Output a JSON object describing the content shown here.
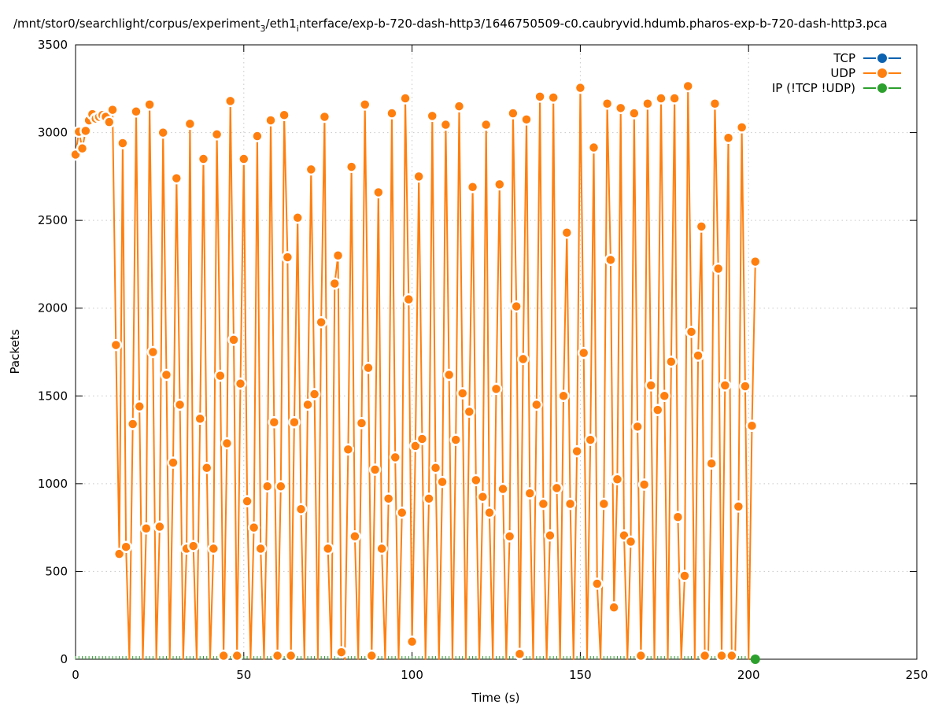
{
  "chart_data": {
    "type": "line",
    "title_parts": [
      {
        "text": "/mnt/stor0/searchlight/corpus/experiment",
        "sub": false
      },
      {
        "text": "3",
        "sub": true
      },
      {
        "text": "/eth1",
        "sub": false
      },
      {
        "text": "i",
        "sub": true
      },
      {
        "text": "nterface/exp-b-720-dash-http3/1646750509-c0.caubryvid.hdumb.pharos-exp-b-720-dash-http3.pca",
        "sub": false
      }
    ],
    "xlabel": "Time (s)",
    "ylabel": "Packets",
    "xlim": [
      0,
      250
    ],
    "ylim": [
      0,
      3500
    ],
    "xticks": [
      "0",
      "50",
      "100",
      "150",
      "200",
      "250"
    ],
    "yticks": [
      "0",
      "500",
      "1000",
      "1500",
      "2000",
      "2500",
      "3000",
      "3500"
    ],
    "grid": true,
    "legend_position": "top-right",
    "series": [
      {
        "name": "TCP",
        "color": "#0b62b0",
        "x": [],
        "values": []
      },
      {
        "name": "UDP",
        "color": "#ff7f0e",
        "x_start": 0,
        "x_step": 1,
        "values": [
          2875,
          3005,
          2910,
          3010,
          3070,
          3105,
          3080,
          3090,
          3100,
          3090,
          3060,
          3130,
          1790,
          600,
          2940,
          640,
          0,
          1340,
          3120,
          1440,
          0,
          745,
          3160,
          1750,
          0,
          755,
          3000,
          1620,
          0,
          1120,
          2740,
          1450,
          0,
          630,
          3050,
          645,
          0,
          1370,
          2850,
          1090,
          0,
          630,
          2990,
          1615,
          20,
          1230,
          3180,
          1820,
          20,
          1570,
          2850,
          900,
          0,
          750,
          2980,
          630,
          0,
          985,
          3070,
          1350,
          20,
          985,
          3100,
          2290,
          20,
          1350,
          2515,
          855,
          0,
          1450,
          2790,
          1510,
          0,
          1920,
          3090,
          630,
          0,
          2140,
          2300,
          40,
          0,
          1195,
          2805,
          700,
          0,
          1345,
          3160,
          1660,
          20,
          1080,
          2660,
          630,
          0,
          915,
          3110,
          1150,
          0,
          835,
          3195,
          2050,
          100,
          1215,
          2750,
          1255,
          0,
          915,
          3095,
          1090,
          0,
          1010,
          3045,
          1620,
          0,
          1250,
          3150,
          1515,
          0,
          1410,
          2690,
          1020,
          0,
          925,
          3045,
          835,
          0,
          1540,
          2705,
          970,
          0,
          700,
          3110,
          2010,
          30,
          1710,
          3075,
          945,
          0,
          1450,
          3205,
          885,
          0,
          705,
          3200,
          975,
          0,
          1500,
          2430,
          885,
          0,
          1185,
          3255,
          1745,
          0,
          1250,
          2915,
          430,
          0,
          885,
          3165,
          2275,
          295,
          1025,
          3140,
          705,
          0,
          670,
          3110,
          1325,
          20,
          995,
          3165,
          1560,
          0,
          1420,
          3195,
          1500,
          0,
          1695,
          3195,
          810,
          0,
          475,
          3265,
          1865,
          0,
          1730,
          2465,
          20,
          0,
          1115,
          3165,
          2225,
          20,
          1560,
          2970,
          20,
          0,
          870,
          3030,
          1555,
          0,
          1330,
          2265
        ]
      },
      {
        "name": "IP (!TCP  !UDP)",
        "color": "#2ca02c",
        "x": [
          202
        ],
        "values": [
          0
        ]
      }
    ]
  }
}
